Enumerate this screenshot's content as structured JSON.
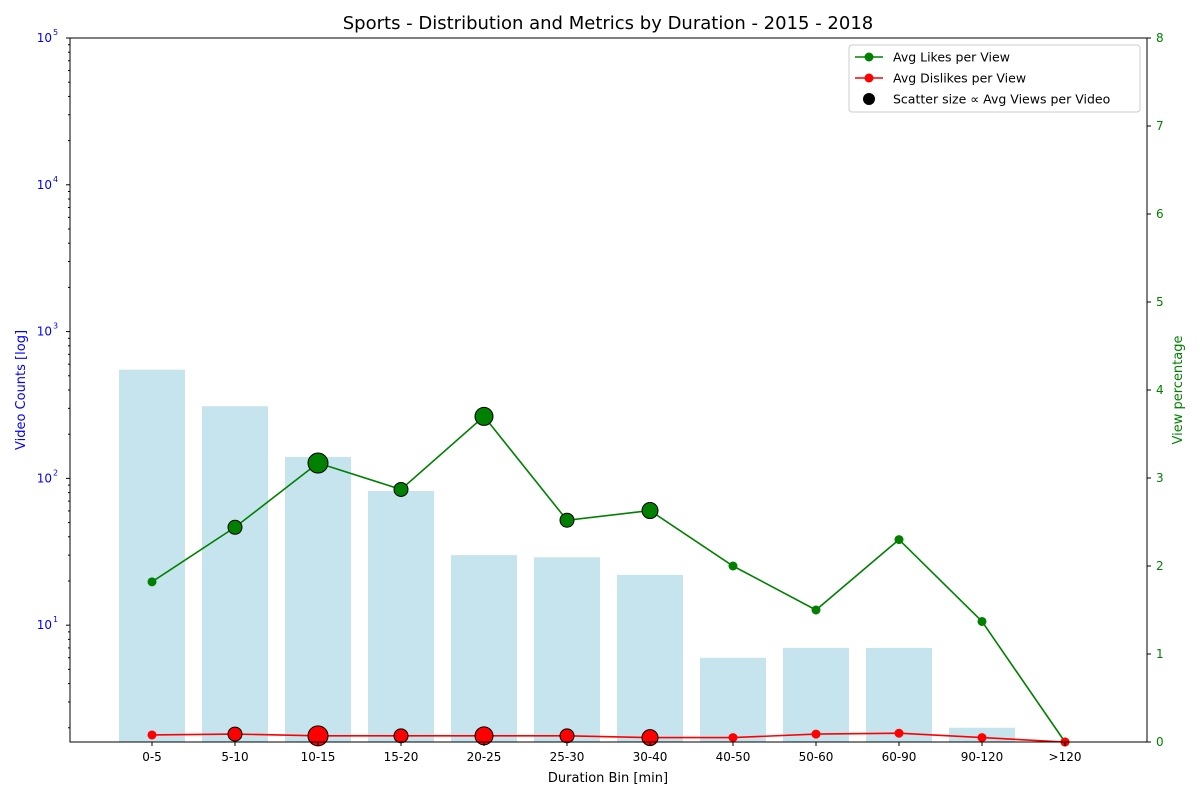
{
  "chart_data": {
    "type": "bar",
    "title": "Sports - Distribution and Metrics by Duration - 2015 - 2018",
    "xlabel": "Duration Bin [min]",
    "ylabel": "Video Counts [log]",
    "y2label": "View percentage",
    "yscale": "log",
    "ylim": [
      1.6,
      100000
    ],
    "y2lim": [
      0,
      8
    ],
    "y_ticks": [
      {
        "base": "10",
        "exp": "1",
        "value": 10
      },
      {
        "base": "10",
        "exp": "2",
        "value": 100
      },
      {
        "base": "10",
        "exp": "3",
        "value": 1000
      },
      {
        "base": "10",
        "exp": "4",
        "value": 10000
      },
      {
        "base": "10",
        "exp": "5",
        "value": 100000
      }
    ],
    "y2_ticks": [
      "0",
      "1",
      "2",
      "3",
      "4",
      "5",
      "6",
      "7",
      "8"
    ],
    "categories": [
      "0-5",
      "5-10",
      "10-15",
      "15-20",
      "20-25",
      "25-30",
      "30-40",
      "40-50",
      "50-60",
      "60-90",
      "90-120",
      ">120"
    ],
    "bars": {
      "name": "Video Counts",
      "color": "#add8e6",
      "values": [
        550,
        310,
        140,
        82,
        30,
        29,
        22,
        6,
        7,
        7,
        2,
        1
      ]
    },
    "series": [
      {
        "name": "Avg Likes per View",
        "color": "#008000",
        "values": [
          1.82,
          2.44,
          3.17,
          2.87,
          3.7,
          2.52,
          2.63,
          2.0,
          1.5,
          2.3,
          1.37,
          0.0
        ],
        "marker_sizes": [
          6,
          10,
          16,
          10,
          14,
          10,
          12,
          6,
          6,
          6,
          6,
          6
        ]
      },
      {
        "name": "Avg Dislikes per View",
        "color": "#ff0000",
        "values": [
          0.08,
          0.09,
          0.07,
          0.07,
          0.07,
          0.07,
          0.05,
          0.05,
          0.09,
          0.1,
          0.05,
          0.0
        ],
        "marker_sizes": [
          6,
          10,
          16,
          10,
          14,
          10,
          12,
          6,
          6,
          6,
          6,
          6
        ]
      }
    ],
    "legend": {
      "position": "top-right",
      "items": [
        {
          "label": "Avg Likes per View",
          "kind": "line",
          "color": "#008000"
        },
        {
          "label": "Avg Dislikes per View",
          "kind": "line",
          "color": "#ff0000"
        },
        {
          "label": "Scatter size ∝ Avg Views per Video",
          "kind": "dot",
          "color": "#000000"
        }
      ]
    },
    "colors": {
      "left_axis": "#0000ff",
      "right_axis": "#008000"
    },
    "grid": false
  }
}
